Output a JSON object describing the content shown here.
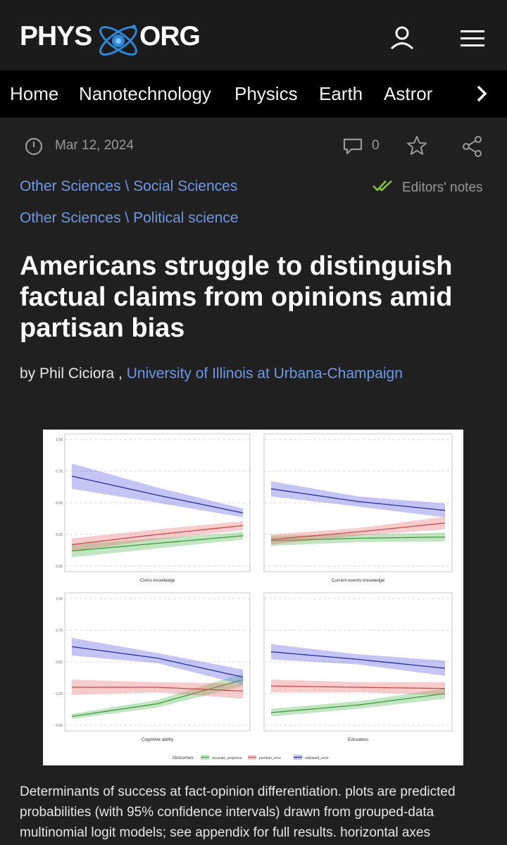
{
  "header": {
    "logo_left": "PHYS",
    "logo_right": "ORG",
    "icons": [
      "user-icon",
      "hamburger-menu-icon"
    ]
  },
  "nav": {
    "items": [
      "Home",
      "Nanotechnology",
      "Physics",
      "Earth",
      "Astror"
    ],
    "next_icon": "chevron-right-icon"
  },
  "meta": {
    "date": "Mar 12, 2024",
    "comments": "0",
    "icons": [
      "clock-icon",
      "comment-icon",
      "star-icon",
      "share-icon"
    ]
  },
  "tags": [
    {
      "category": "Other Sciences",
      "sub": "Social Sciences"
    },
    {
      "category": "Other Sciences",
      "sub": "Political science"
    }
  ],
  "editors_notes": "Editors' notes",
  "article": {
    "title": "Americans struggle to distinguish factual claims from opinions amid partisan bias",
    "by": "by Phil Ciciora ,",
    "institution": "University of Illinois at Urbana-Champaign",
    "caption": "Determinants of success at fact-opinion differentiation. plots are predicted probabilities (with 95% confidence intervals) drawn from grouped-data multinomial logit models; see appendix for full results. horizontal axes"
  },
  "colors": {
    "accurate_response": "#3f9a3f",
    "partisan_error": "#d9534f",
    "unbiased_error": "#3d3dbf",
    "link": "#6f98e6",
    "check": "#8dc63f"
  },
  "chart_data": [
    {
      "type": "line",
      "xlabel": "Civics knowledge",
      "ylim": [
        0,
        1
      ],
      "yticks": [
        "0.00",
        "0.25",
        "0.50",
        "0.75",
        "1.00"
      ],
      "series": [
        {
          "name": "accurate_response",
          "values": [
            0.12,
            0.18,
            0.24
          ],
          "band": [
            0.05,
            0.04,
            0.03
          ]
        },
        {
          "name": "partisan_error",
          "values": [
            0.17,
            0.25,
            0.32
          ],
          "band": [
            0.05,
            0.04,
            0.035
          ]
        },
        {
          "name": "unbiased_error",
          "values": [
            0.71,
            0.56,
            0.42
          ],
          "band": [
            0.1,
            0.06,
            0.035
          ]
        }
      ]
    },
    {
      "type": "line",
      "xlabel": "Current events knowledge",
      "ylim": [
        0,
        1
      ],
      "yticks": [
        "0.00",
        "0.25",
        "0.50",
        "0.75",
        "1.00"
      ],
      "series": [
        {
          "name": "accurate_response",
          "values": [
            0.2,
            0.22,
            0.23
          ],
          "band": [
            0.04,
            0.03,
            0.035
          ]
        },
        {
          "name": "partisan_error",
          "values": [
            0.21,
            0.27,
            0.34
          ],
          "band": [
            0.04,
            0.03,
            0.05
          ]
        },
        {
          "name": "unbiased_error",
          "values": [
            0.61,
            0.51,
            0.44
          ],
          "band": [
            0.06,
            0.04,
            0.055
          ]
        }
      ]
    },
    {
      "type": "line",
      "xlabel": "Cognitive ability",
      "ylim": [
        0,
        1
      ],
      "yticks": [
        "0.00",
        "0.25",
        "0.50",
        "0.75",
        "1.00"
      ],
      "series": [
        {
          "name": "accurate_response",
          "values": [
            0.07,
            0.17,
            0.36
          ],
          "band": [
            0.02,
            0.03,
            0.05
          ]
        },
        {
          "name": "partisan_error",
          "values": [
            0.3,
            0.3,
            0.27
          ],
          "band": [
            0.06,
            0.04,
            0.06
          ]
        },
        {
          "name": "unbiased_error",
          "values": [
            0.62,
            0.53,
            0.38
          ],
          "band": [
            0.07,
            0.04,
            0.06
          ]
        }
      ]
    },
    {
      "type": "line",
      "xlabel": "Education",
      "ylim": [
        0,
        1
      ],
      "yticks": [
        "0.00",
        "0.25",
        "0.50",
        "0.75",
        "1.00"
      ],
      "series": [
        {
          "name": "accurate_response",
          "values": [
            0.1,
            0.16,
            0.25
          ],
          "band": [
            0.03,
            0.03,
            0.04
          ]
        },
        {
          "name": "partisan_error",
          "values": [
            0.31,
            0.3,
            0.29
          ],
          "band": [
            0.05,
            0.04,
            0.05
          ]
        },
        {
          "name": "unbiased_error",
          "values": [
            0.58,
            0.52,
            0.45
          ],
          "band": [
            0.06,
            0.04,
            0.06
          ]
        }
      ]
    }
  ],
  "legend": {
    "title": "Outcomes",
    "items": [
      "accurate_response",
      "partisan_error",
      "unbiased_error"
    ]
  }
}
